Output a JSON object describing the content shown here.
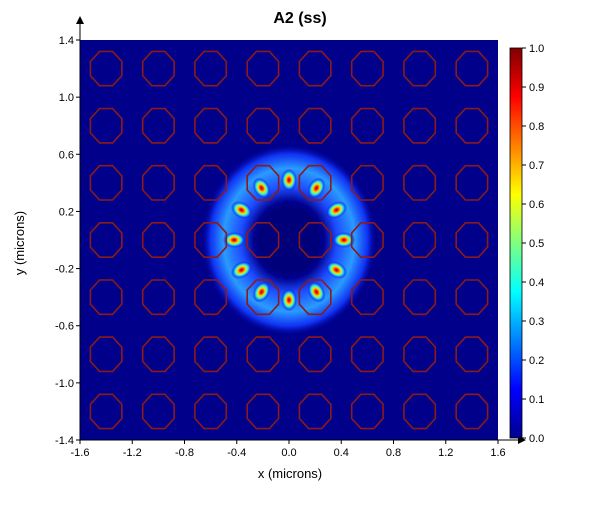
{
  "chart_data": {
    "type": "heatmap",
    "title": "A2 (ss)",
    "xlabel": "x (microns)",
    "ylabel": "y (microns)",
    "xlim": [
      -1.6,
      1.6
    ],
    "ylim": [
      -1.4,
      1.4
    ],
    "x_ticks": [
      "-1.6",
      "-1.2",
      "-0.8",
      "-0.4",
      "0.0",
      "0.4",
      "0.8",
      "1.2",
      "1.6"
    ],
    "y_ticks": [
      "-1.4",
      "-1.0",
      "-0.6",
      "-0.2",
      "0.2",
      "0.6",
      "1.0",
      "1.4"
    ],
    "colorbar": {
      "range": [
        0.0,
        1.0
      ],
      "ticks": [
        "0.0",
        "0.1",
        "0.2",
        "0.3",
        "0.4",
        "0.5",
        "0.6",
        "0.7",
        "0.8",
        "0.9",
        "1.0"
      ],
      "colormap": "jet"
    },
    "field_pattern": {
      "description_type": "ring of lobes around central defect",
      "center": [
        0.0,
        0.0
      ],
      "ring_radius": 0.42,
      "lobe_count": 12,
      "peak_intensity": 1.0
    },
    "lattice": {
      "type": "square array of octagonal holes",
      "pitch": 0.4,
      "hole_radius": 0.13,
      "outline_color": "#8b1a1a"
    },
    "background_color": "#00008b",
    "grid": false
  }
}
